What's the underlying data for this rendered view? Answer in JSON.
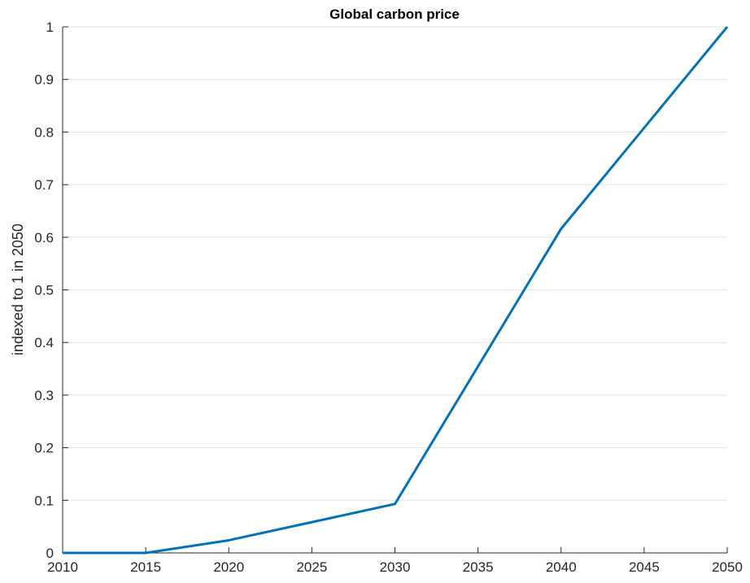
{
  "chart_data": {
    "type": "line",
    "title": "Global carbon price",
    "xlabel": "",
    "ylabel": "indexed to 1 in 2050",
    "xlim": [
      2010,
      2050
    ],
    "ylim": [
      0,
      1
    ],
    "xticks": [
      2010,
      2015,
      2020,
      2025,
      2030,
      2035,
      2040,
      2045,
      2050
    ],
    "yticks": [
      0,
      0.1,
      0.2,
      0.3,
      0.4,
      0.5,
      0.6,
      0.7,
      0.8,
      0.9,
      1
    ],
    "grid": true,
    "series": [
      {
        "color": "#0072bd",
        "x": [
          2010,
          2015,
          2020,
          2030,
          2040,
          2050
        ],
        "y": [
          0,
          0,
          0.024,
          0.093,
          0.616,
          1.0
        ]
      }
    ]
  }
}
